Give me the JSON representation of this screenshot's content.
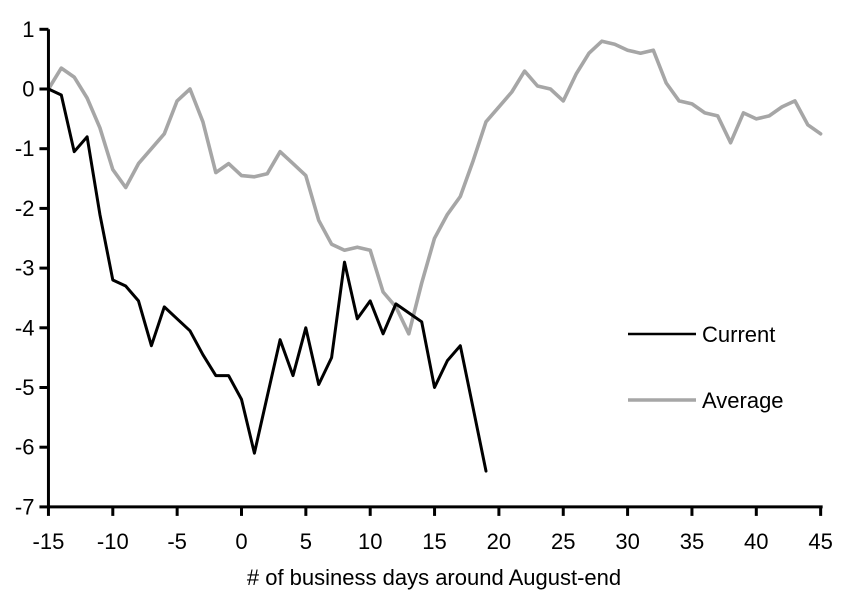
{
  "chart_data": {
    "type": "line",
    "title": "",
    "xlabel": "# of business days around August-end",
    "ylabel": "",
    "xlim": [
      -15,
      45
    ],
    "ylim": [
      -7,
      1
    ],
    "x_ticks": [
      -15,
      -10,
      -5,
      0,
      5,
      10,
      15,
      20,
      25,
      30,
      35,
      40,
      45
    ],
    "y_ticks": [
      1,
      0,
      -1,
      -2,
      -3,
      -4,
      -5,
      -6,
      -7
    ],
    "grid": false,
    "legend_position": "middle-right",
    "axis_color": "#000000",
    "background_color": "#ffffff",
    "series": [
      {
        "name": "Current",
        "color": "#000000",
        "x": [
          -15,
          -14,
          -13,
          -12,
          -11,
          -10,
          -9,
          -8,
          -7,
          -6,
          -5,
          -4,
          -3,
          -2,
          -1,
          0,
          1,
          2,
          3,
          4,
          5,
          6,
          7,
          8,
          9,
          10,
          11,
          12,
          13,
          14,
          15,
          16,
          17,
          18,
          19
        ],
        "values": [
          0.0,
          -0.1,
          -1.05,
          -0.8,
          -2.1,
          -3.2,
          -3.3,
          -3.55,
          -4.3,
          -3.65,
          -3.85,
          -4.05,
          -4.45,
          -4.8,
          -4.8,
          -5.2,
          -6.1,
          -5.15,
          -4.2,
          -4.8,
          -4.0,
          -4.95,
          -4.5,
          -2.9,
          -3.85,
          -3.55,
          -4.1,
          -3.6,
          -3.75,
          -3.9,
          -5.0,
          -4.55,
          -4.3,
          -5.35,
          -6.4
        ]
      },
      {
        "name": "Average",
        "color": "#a6a6a6",
        "x": [
          -15,
          -14,
          -13,
          -12,
          -11,
          -10,
          -9,
          -8,
          -7,
          -6,
          -5,
          -4,
          -3,
          -2,
          -1,
          0,
          1,
          2,
          3,
          4,
          5,
          6,
          7,
          8,
          9,
          10,
          11,
          12,
          13,
          14,
          15,
          16,
          17,
          18,
          19,
          20,
          21,
          22,
          23,
          24,
          25,
          26,
          27,
          28,
          29,
          30,
          31,
          32,
          33,
          34,
          35,
          36,
          37,
          38,
          39,
          40,
          41,
          42,
          43,
          44,
          45
        ],
        "values": [
          0.0,
          0.35,
          0.2,
          -0.15,
          -0.65,
          -1.35,
          -1.65,
          -1.25,
          -1.0,
          -0.75,
          -0.2,
          0.0,
          -0.55,
          -1.4,
          -1.25,
          -1.45,
          -1.47,
          -1.42,
          -1.05,
          -1.25,
          -1.45,
          -2.2,
          -2.6,
          -2.7,
          -2.65,
          -2.7,
          -3.4,
          -3.65,
          -4.1,
          -3.25,
          -2.5,
          -2.1,
          -1.8,
          -1.2,
          -0.55,
          -0.3,
          -0.05,
          0.3,
          0.05,
          0.0,
          -0.2,
          0.25,
          0.6,
          0.8,
          0.75,
          0.65,
          0.6,
          0.65,
          0.1,
          -0.2,
          -0.25,
          -0.4,
          -0.45,
          -0.9,
          -0.4,
          -0.5,
          -0.45,
          -0.3,
          -0.2,
          -0.6,
          -0.75
        ]
      }
    ]
  }
}
